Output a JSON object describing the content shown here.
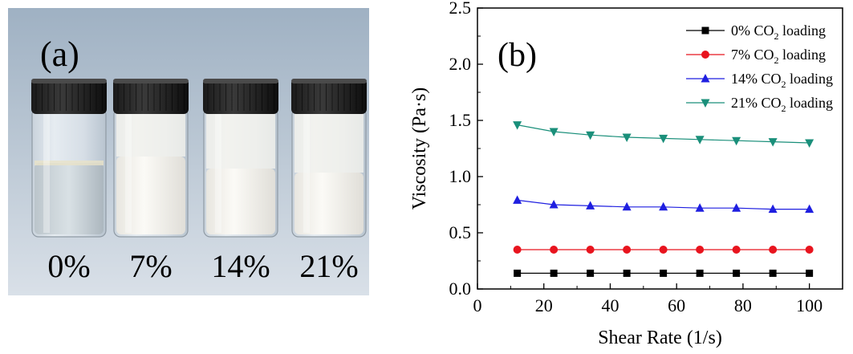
{
  "panel_a": {
    "label": "(a)",
    "vials": [
      {
        "label": "0%",
        "liquid": "clear"
      },
      {
        "label": "7%",
        "liquid": "milky"
      },
      {
        "label": "14%",
        "liquid": "milky"
      },
      {
        "label": "21%",
        "liquid": "milky"
      }
    ]
  },
  "panel_b": {
    "label": "(b)"
  },
  "chart_data": {
    "type": "line",
    "xlabel": "Shear Rate (1/s)",
    "ylabel": "Viscosity (Pa·s)",
    "xlim": [
      0,
      110
    ],
    "ylim": [
      0,
      2.5
    ],
    "x_ticks": [
      0,
      20,
      40,
      60,
      80,
      100
    ],
    "x_tick_labels": [
      "0",
      "20",
      "40",
      "60",
      "80",
      "100"
    ],
    "y_ticks": [
      0,
      0.5,
      1.0,
      1.5,
      2.0,
      2.5
    ],
    "y_tick_labels": [
      "0.0",
      "0.5",
      "1.0",
      "1.5",
      "2.0",
      "2.5"
    ],
    "grid": false,
    "legend_position": "top-right",
    "x": [
      12,
      23,
      34,
      45,
      56,
      67,
      78,
      89,
      100
    ],
    "series": [
      {
        "name_pre": "0% CO",
        "name_sub": "2",
        "name_post": " loading",
        "color": "#000000",
        "marker": "square",
        "values": [
          0.14,
          0.14,
          0.14,
          0.14,
          0.14,
          0.14,
          0.14,
          0.14,
          0.14
        ]
      },
      {
        "name_pre": "7% CO",
        "name_sub": "2",
        "name_post": " loading",
        "color": "#e8141e",
        "marker": "circle",
        "values": [
          0.35,
          0.35,
          0.35,
          0.35,
          0.35,
          0.35,
          0.35,
          0.35,
          0.35
        ]
      },
      {
        "name_pre": "14% CO",
        "name_sub": "2",
        "name_post": " loading",
        "color": "#1f1fe0",
        "marker": "triangle-up",
        "values": [
          0.79,
          0.75,
          0.74,
          0.73,
          0.73,
          0.72,
          0.72,
          0.71,
          0.71
        ]
      },
      {
        "name_pre": "21% CO",
        "name_sub": "2",
        "name_post": " loading",
        "color": "#1a8f7a",
        "marker": "triangle-down",
        "values": [
          1.46,
          1.4,
          1.37,
          1.35,
          1.34,
          1.33,
          1.32,
          1.31,
          1.3
        ]
      }
    ]
  }
}
